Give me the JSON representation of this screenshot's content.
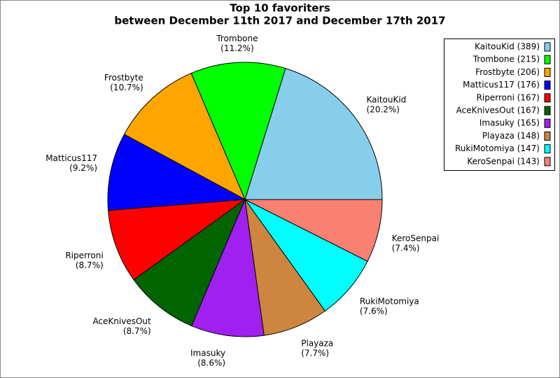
{
  "chart_data": {
    "type": "pie",
    "title": "Top 10 favoriters",
    "subtitle": "between December 11th 2017 and December 17th 2017",
    "categories": [
      "KaitouKid",
      "Trombone",
      "Frostbyte",
      "Matticus117",
      "Riperroni",
      "AceKnivesOut",
      "Imasuky",
      "Playaza",
      "RukiMotomiya",
      "KeroSenpai"
    ],
    "values": [
      389,
      215,
      206,
      176,
      167,
      167,
      165,
      148,
      147,
      143
    ],
    "value_labels": [
      "(20.2%)",
      "(11.2%)",
      "(10.7%)",
      "(9.2%)",
      "(8.7%)",
      "(8.7%)",
      "(8.6%)",
      "(7.7%)",
      "(7.6%)",
      "(7.4%)"
    ],
    "legend_labels": [
      "KaitouKid (389)",
      "Trombone (215)",
      "Frostbyte (206)",
      "Matticus117 (176)",
      "Riperroni (167)",
      "AceKnivesOut (167)",
      "Imasuky (165)",
      "Playaza (148)",
      "RukiMotomiya (147)",
      "KeroSenpai (143)"
    ],
    "colors": [
      "#87ceeb",
      "#00ff00",
      "#ffa500",
      "#0000ff",
      "#ff0000",
      "#006400",
      "#a020f0",
      "#cd853f",
      "#00ffff",
      "#fa8072"
    ],
    "legend": "upper right"
  }
}
